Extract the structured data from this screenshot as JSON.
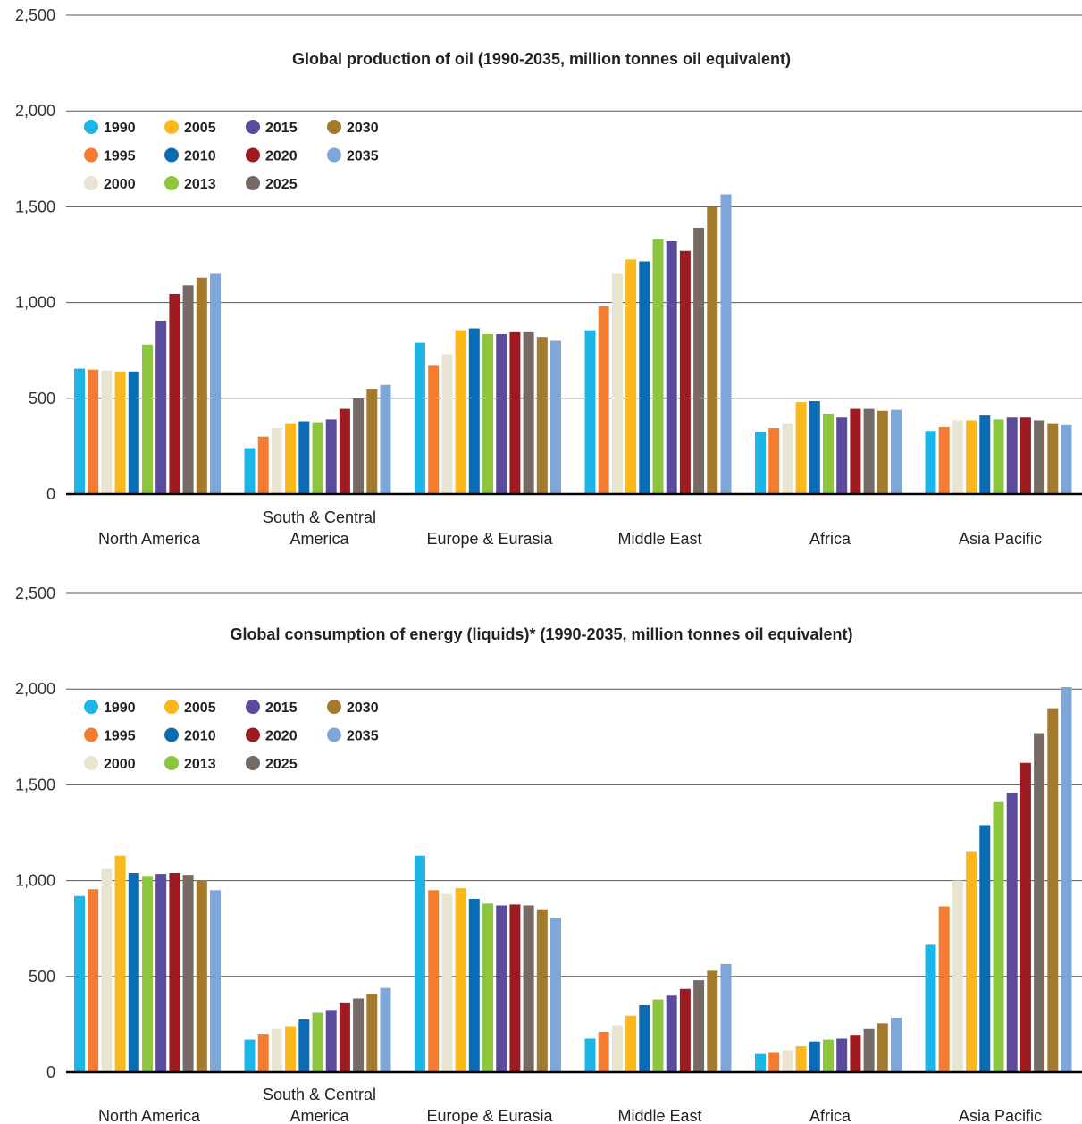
{
  "colors": {
    "1990": "#1cb5e8",
    "1995": "#f47c30",
    "2000": "#e8e4d1",
    "2005": "#fbb81a",
    "2010": "#0a6db3",
    "2013": "#8cc63e",
    "2015": "#5c4b9c",
    "2020": "#9e1b21",
    "2025": "#766a65",
    "2030": "#a47a2e",
    "2035": "#7ea6d9",
    "gridline": "#555555",
    "axis": "#000000"
  },
  "chart_data": [
    {
      "type": "bar",
      "title": "Global production of oil (1990-2035, million tonnes oil equivalent)",
      "xlabel": "",
      "ylabel": "",
      "ylim": [
        0,
        2500
      ],
      "y_ticks": [
        "0",
        "500",
        "1,000",
        "1,500",
        "2,000",
        "2,500"
      ],
      "y_tick_values": [
        0,
        500,
        1000,
        1500,
        2000,
        2500
      ],
      "grid": true,
      "legend_position": "top-left",
      "categories": [
        [
          "North America"
        ],
        [
          "South & Central",
          "America"
        ],
        [
          "Europe & Eurasia"
        ],
        [
          "Middle East"
        ],
        [
          "Africa"
        ],
        [
          "Asia Pacific"
        ]
      ],
      "series": [
        {
          "name": "1990",
          "values": [
            655,
            240,
            790,
            855,
            325,
            330
          ]
        },
        {
          "name": "1995",
          "values": [
            650,
            300,
            670,
            980,
            345,
            350
          ]
        },
        {
          "name": "2000",
          "values": [
            645,
            345,
            730,
            1150,
            370,
            385
          ]
        },
        {
          "name": "2005",
          "values": [
            640,
            370,
            855,
            1225,
            480,
            385
          ]
        },
        {
          "name": "2010",
          "values": [
            640,
            380,
            865,
            1215,
            485,
            410
          ]
        },
        {
          "name": "2013",
          "values": [
            780,
            375,
            835,
            1330,
            420,
            390
          ]
        },
        {
          "name": "2015",
          "values": [
            905,
            390,
            835,
            1320,
            400,
            400
          ]
        },
        {
          "name": "2020",
          "values": [
            1045,
            445,
            845,
            1270,
            445,
            400
          ]
        },
        {
          "name": "2025",
          "values": [
            1090,
            500,
            845,
            1390,
            445,
            385
          ]
        },
        {
          "name": "2030",
          "values": [
            1130,
            550,
            820,
            1500,
            435,
            370
          ]
        },
        {
          "name": "2035",
          "values": [
            1150,
            570,
            800,
            1565,
            440,
            360
          ]
        }
      ]
    },
    {
      "type": "bar",
      "title": "Global consumption of energy (liquids)* (1990-2035, million tonnes oil equivalent)",
      "xlabel": "",
      "ylabel": "",
      "ylim": [
        0,
        2500
      ],
      "y_ticks": [
        "0",
        "500",
        "1,000",
        "1,500",
        "2,000",
        "2,500"
      ],
      "y_tick_values": [
        0,
        500,
        1000,
        1500,
        2000,
        2500
      ],
      "grid": true,
      "legend_position": "top-left",
      "categories": [
        [
          "North America"
        ],
        [
          "South & Central",
          "America"
        ],
        [
          "Europe & Eurasia"
        ],
        [
          "Middle East"
        ],
        [
          "Africa"
        ],
        [
          "Asia Pacific"
        ]
      ],
      "series": [
        {
          "name": "1990",
          "values": [
            920,
            170,
            1130,
            175,
            95,
            665
          ]
        },
        {
          "name": "1995",
          "values": [
            955,
            200,
            950,
            210,
            105,
            865
          ]
        },
        {
          "name": "2000",
          "values": [
            1060,
            225,
            930,
            245,
            115,
            1000
          ]
        },
        {
          "name": "2005",
          "values": [
            1130,
            240,
            960,
            295,
            135,
            1150
          ]
        },
        {
          "name": "2010",
          "values": [
            1040,
            275,
            905,
            350,
            160,
            1290
          ]
        },
        {
          "name": "2013",
          "values": [
            1025,
            310,
            880,
            380,
            170,
            1410
          ]
        },
        {
          "name": "2015",
          "values": [
            1035,
            325,
            870,
            400,
            175,
            1460
          ]
        },
        {
          "name": "2020",
          "values": [
            1040,
            360,
            875,
            435,
            195,
            1615
          ]
        },
        {
          "name": "2025",
          "values": [
            1030,
            385,
            870,
            480,
            225,
            1770
          ]
        },
        {
          "name": "2030",
          "values": [
            1000,
            410,
            850,
            530,
            255,
            1900
          ]
        },
        {
          "name": "2035",
          "values": [
            950,
            440,
            805,
            565,
            285,
            2010
          ]
        }
      ]
    }
  ]
}
